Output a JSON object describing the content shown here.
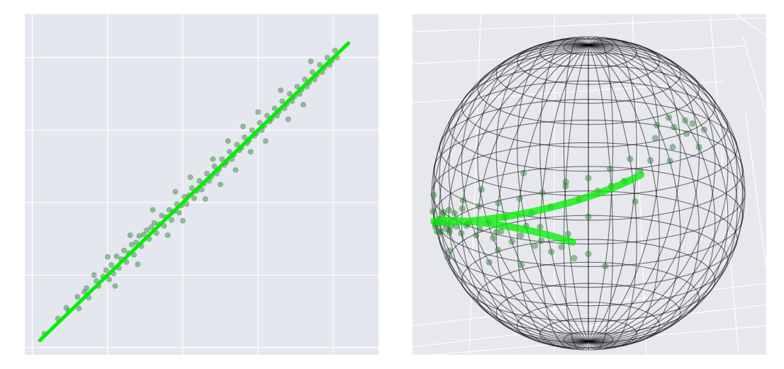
{
  "chart_data": [
    {
      "type": "scatter",
      "title": "",
      "xlabel": "",
      "ylabel": "",
      "xlim": [
        -2.1,
        2.6
      ],
      "ylim": [
        -2.1,
        2.6
      ],
      "grid": true,
      "style": {
        "background": "#e5e7ef",
        "grid_color": "#ffffff",
        "point_color": "#2e7d32",
        "line_color": "#00ee00"
      },
      "fit_line": {
        "x": [
          -1.9,
          2.2
        ],
        "y": [
          -1.9,
          2.2
        ]
      },
      "series": [
        {
          "values": [
            [
              -1.84,
              -1.81
            ],
            [
              -1.66,
              -1.6
            ],
            [
              -1.55,
              -1.45
            ],
            [
              -1.52,
              -1.49
            ],
            [
              -1.4,
              -1.3
            ],
            [
              -1.38,
              -1.46
            ],
            [
              -1.31,
              -1.23
            ],
            [
              -1.28,
              -1.18
            ],
            [
              -1.25,
              -1.31
            ],
            [
              -1.18,
              -1.0
            ],
            [
              -1.15,
              -1.08
            ],
            [
              -1.12,
              -1.15
            ],
            [
              -1.06,
              -1.02
            ],
            [
              -1.02,
              -0.93
            ],
            [
              -0.98,
              -1.06
            ],
            [
              -0.95,
              -0.86
            ],
            [
              -0.92,
              -0.98
            ],
            [
              -0.88,
              -0.74
            ],
            [
              -0.85,
              -0.9
            ],
            [
              -0.82,
              -0.78
            ],
            [
              -0.78,
              -0.66
            ],
            [
              -0.75,
              -0.82
            ],
            [
              -0.72,
              -0.7
            ],
            [
              -0.68,
              -0.58
            ],
            [
              -0.65,
              -0.72
            ],
            [
              -0.62,
              -0.55
            ],
            [
              -0.58,
              -0.46
            ],
            [
              -0.55,
              -0.6
            ],
            [
              -0.52,
              -0.44
            ],
            [
              -0.48,
              -0.38
            ],
            [
              -0.45,
              -0.5
            ],
            [
              -0.42,
              -0.34
            ],
            [
              -0.38,
              -0.28
            ],
            [
              -0.35,
              -0.42
            ],
            [
              -0.32,
              -0.3
            ],
            [
              -0.28,
              -0.18
            ],
            [
              -0.25,
              -0.32
            ],
            [
              -0.22,
              -0.2
            ],
            [
              -0.18,
              -0.1
            ],
            [
              -0.15,
              -0.24
            ],
            [
              -0.12,
              -0.12
            ],
            [
              -0.08,
              -0.02
            ],
            [
              -0.05,
              -0.14
            ],
            [
              -0.02,
              -0.04
            ],
            [
              0.02,
              0.08
            ],
            [
              0.05,
              -0.02
            ],
            [
              0.08,
              0.1
            ],
            [
              0.12,
              0.2
            ],
            [
              0.15,
              0.06
            ],
            [
              0.18,
              0.16
            ],
            [
              0.22,
              0.3
            ],
            [
              0.25,
              0.18
            ],
            [
              0.28,
              0.26
            ],
            [
              0.32,
              0.4
            ],
            [
              0.35,
              0.3
            ],
            [
              0.38,
              0.36
            ],
            [
              0.42,
              0.5
            ],
            [
              0.45,
              0.4
            ],
            [
              0.48,
              0.46
            ],
            [
              0.52,
              0.6
            ],
            [
              0.55,
              0.52
            ],
            [
              0.58,
              0.56
            ],
            [
              0.62,
              0.7
            ],
            [
              0.65,
              0.6
            ],
            [
              0.68,
              0.66
            ],
            [
              0.72,
              0.8
            ],
            [
              0.75,
              0.72
            ],
            [
              0.78,
              0.76
            ],
            [
              0.82,
              0.9
            ],
            [
              0.85,
              0.82
            ],
            [
              0.88,
              0.86
            ],
            [
              0.92,
              1.0
            ],
            [
              0.95,
              0.92
            ],
            [
              0.98,
              0.96
            ],
            [
              1.02,
              1.1
            ],
            [
              1.05,
              1.0
            ],
            [
              1.08,
              1.06
            ],
            [
              1.12,
              1.2
            ],
            [
              1.15,
              1.12
            ],
            [
              1.18,
              1.16
            ],
            [
              1.22,
              1.3
            ],
            [
              1.25,
              1.2
            ],
            [
              1.28,
              1.26
            ],
            [
              1.32,
              1.4
            ],
            [
              1.35,
              1.3
            ],
            [
              1.38,
              1.36
            ],
            [
              1.42,
              1.5
            ],
            [
              1.45,
              1.4
            ],
            [
              1.48,
              1.46
            ],
            [
              1.52,
              1.6
            ],
            [
              1.55,
              1.5
            ],
            [
              1.58,
              1.56
            ],
            [
              1.62,
              1.7
            ],
            [
              1.65,
              1.6
            ],
            [
              1.68,
              1.66
            ],
            [
              1.72,
              1.8
            ],
            [
              1.75,
              1.7
            ],
            [
              1.78,
              1.76
            ],
            [
              1.82,
              1.9
            ],
            [
              1.85,
              1.8
            ],
            [
              1.88,
              1.86
            ],
            [
              1.92,
              2.0
            ],
            [
              1.95,
              1.9
            ],
            [
              1.98,
              1.96
            ],
            [
              2.02,
              2.1
            ],
            [
              2.05,
              2.0
            ],
            [
              -0.4,
              -0.1
            ],
            [
              -0.2,
              -0.45
            ],
            [
              0.1,
              0.35
            ],
            [
              0.3,
              0.05
            ],
            [
              0.6,
              0.85
            ],
            [
              0.7,
              0.45
            ],
            [
              1.0,
              1.25
            ],
            [
              1.1,
              0.85
            ],
            [
              -0.7,
              -0.45
            ],
            [
              -0.6,
              -0.85
            ],
            [
              -0.1,
              0.15
            ],
            [
              0.0,
              -0.25
            ],
            [
              0.4,
              0.6
            ],
            [
              0.5,
              0.25
            ],
            [
              0.8,
              1.05
            ],
            [
              0.9,
              0.7
            ],
            [
              1.3,
              1.55
            ],
            [
              1.4,
              1.15
            ],
            [
              -1.0,
              -0.75
            ],
            [
              -0.9,
              -1.15
            ],
            [
              1.6,
              1.35
            ],
            [
              1.7,
              1.95
            ]
          ]
        }
      ]
    },
    {
      "type": "scatter",
      "title": "",
      "projection": "3d",
      "grid": true,
      "style": {
        "background": "#e6e8ee",
        "wire_color": "#000000",
        "point_color": "#2e7d32",
        "line_color": "#00ee00"
      },
      "series": [
        {
          "values": [
            [
              0.2,
              1.55
            ],
            [
              0.18,
              1.48
            ],
            [
              0.25,
              1.52
            ],
            [
              0.3,
              1.6
            ],
            [
              0.22,
              1.4
            ],
            [
              0.15,
              1.35
            ],
            [
              0.32,
              1.45
            ],
            [
              0.28,
              1.3
            ],
            [
              0.35,
              1.2
            ],
            [
              0.4,
              1.25
            ],
            [
              0.38,
              1.1
            ],
            [
              0.45,
              1.15
            ],
            [
              0.42,
              1.0
            ],
            [
              0.5,
              1.05
            ],
            [
              0.48,
              0.9
            ],
            [
              0.55,
              0.95
            ],
            [
              0.52,
              0.8
            ],
            [
              0.6,
              0.85
            ],
            [
              0.58,
              0.7
            ],
            [
              0.65,
              0.75
            ],
            [
              0.62,
              0.6
            ],
            [
              0.7,
              0.65
            ],
            [
              0.68,
              0.5
            ],
            [
              0.75,
              0.55
            ],
            [
              0.72,
              0.4
            ],
            [
              0.8,
              0.45
            ],
            [
              0.78,
              0.3
            ],
            [
              0.85,
              0.35
            ],
            [
              0.82,
              0.2
            ],
            [
              0.88,
              0.25
            ],
            [
              0.86,
              0.1
            ],
            [
              0.9,
              0.15
            ],
            [
              0.95,
              0.0
            ],
            [
              0.92,
              -0.05
            ],
            [
              0.98,
              -0.1
            ],
            [
              1.0,
              -0.2
            ],
            [
              1.02,
              -0.15
            ],
            [
              1.05,
              -0.3
            ],
            [
              1.08,
              -0.25
            ],
            [
              1.1,
              -0.4
            ],
            [
              1.12,
              -0.35
            ],
            [
              1.15,
              -0.5
            ],
            [
              1.18,
              -0.45
            ],
            [
              1.2,
              -0.6
            ],
            [
              1.22,
              -0.55
            ],
            [
              1.25,
              -0.7
            ],
            [
              1.28,
              -0.65
            ],
            [
              1.3,
              -0.8
            ],
            [
              1.33,
              -0.75
            ],
            [
              1.36,
              -0.9
            ],
            [
              1.38,
              -0.85
            ],
            [
              1.4,
              -1.0
            ],
            [
              1.43,
              -0.95
            ],
            [
              1.46,
              -1.1
            ],
            [
              1.5,
              -1.05
            ],
            [
              1.55,
              -1.2
            ],
            [
              0.6,
              0.45
            ],
            [
              0.55,
              1.0
            ],
            [
              0.75,
              0.75
            ],
            [
              0.85,
              0.1
            ],
            [
              1.0,
              0.05
            ],
            [
              1.15,
              -0.25
            ],
            [
              1.25,
              -0.85
            ],
            [
              1.35,
              -0.65
            ],
            [
              0.3,
              1.15
            ],
            [
              0.45,
              0.95
            ],
            [
              0.7,
              0.3
            ],
            [
              0.9,
              -0.35
            ],
            [
              1.1,
              -0.15
            ],
            [
              1.2,
              -0.95
            ],
            [
              0.2,
              1.2
            ],
            [
              0.5,
              0.6
            ],
            [
              0.65,
              1.05
            ],
            [
              0.8,
              0.55
            ],
            [
              1.05,
              -0.55
            ],
            [
              1.3,
              -1.1
            ],
            [
              0.4,
              0.75
            ],
            [
              0.95,
              0.35
            ],
            [
              1.45,
              -0.8
            ],
            [
              0.25,
              1.65
            ]
          ]
        }
      ]
    }
  ]
}
